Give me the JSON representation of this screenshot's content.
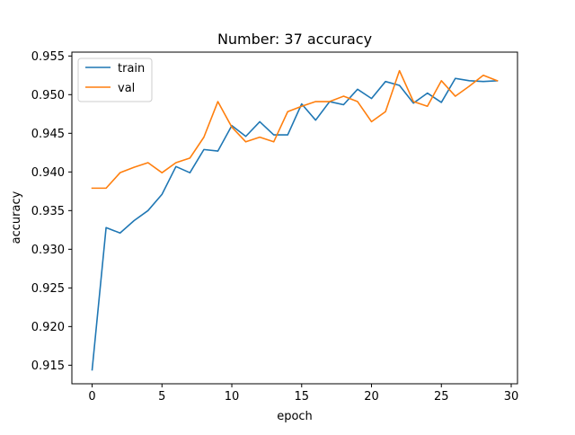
{
  "chart_data": {
    "type": "line",
    "title": "Number: 37 accuracy",
    "xlabel": "epoch",
    "ylabel": "accuracy",
    "xlim": [
      -1.45,
      30.45
    ],
    "ylim": [
      0.9126,
      0.9555
    ],
    "xticks": [
      0,
      5,
      10,
      15,
      20,
      25,
      30
    ],
    "xtick_labels": [
      "0",
      "5",
      "10",
      "15",
      "20",
      "25",
      "30"
    ],
    "yticks": [
      0.915,
      0.92,
      0.925,
      0.93,
      0.935,
      0.94,
      0.945,
      0.95,
      0.955
    ],
    "ytick_labels": [
      "0.915",
      "0.920",
      "0.925",
      "0.930",
      "0.935",
      "0.940",
      "0.945",
      "0.950",
      "0.955"
    ],
    "grid": false,
    "legend_position": "upper left",
    "x": [
      0,
      1,
      2,
      3,
      4,
      5,
      6,
      7,
      8,
      9,
      10,
      11,
      12,
      13,
      14,
      15,
      16,
      17,
      18,
      19,
      20,
      21,
      22,
      23,
      24,
      25,
      26,
      27,
      28,
      29
    ],
    "series": [
      {
        "name": "train",
        "color": "#1f77b4",
        "values": [
          0.9144,
          0.9328,
          0.9321,
          0.9337,
          0.935,
          0.9371,
          0.9407,
          0.9399,
          0.9429,
          0.9427,
          0.946,
          0.9446,
          0.9465,
          0.9448,
          0.9448,
          0.9488,
          0.9467,
          0.9491,
          0.9487,
          0.9507,
          0.9495,
          0.9517,
          0.9512,
          0.9489,
          0.9502,
          0.949,
          0.9521,
          0.9518,
          0.9517,
          0.9518
        ]
      },
      {
        "name": "val",
        "color": "#ff7f0e",
        "values": [
          0.9379,
          0.9379,
          0.9399,
          0.9406,
          0.9412,
          0.9399,
          0.9412,
          0.9418,
          0.9445,
          0.9491,
          0.9458,
          0.9439,
          0.9445,
          0.9439,
          0.9478,
          0.9485,
          0.9491,
          0.9491,
          0.9498,
          0.9491,
          0.9465,
          0.9478,
          0.9531,
          0.9491,
          0.9485,
          0.9518,
          0.9498,
          0.9511,
          0.9525,
          0.9518
        ]
      }
    ]
  }
}
